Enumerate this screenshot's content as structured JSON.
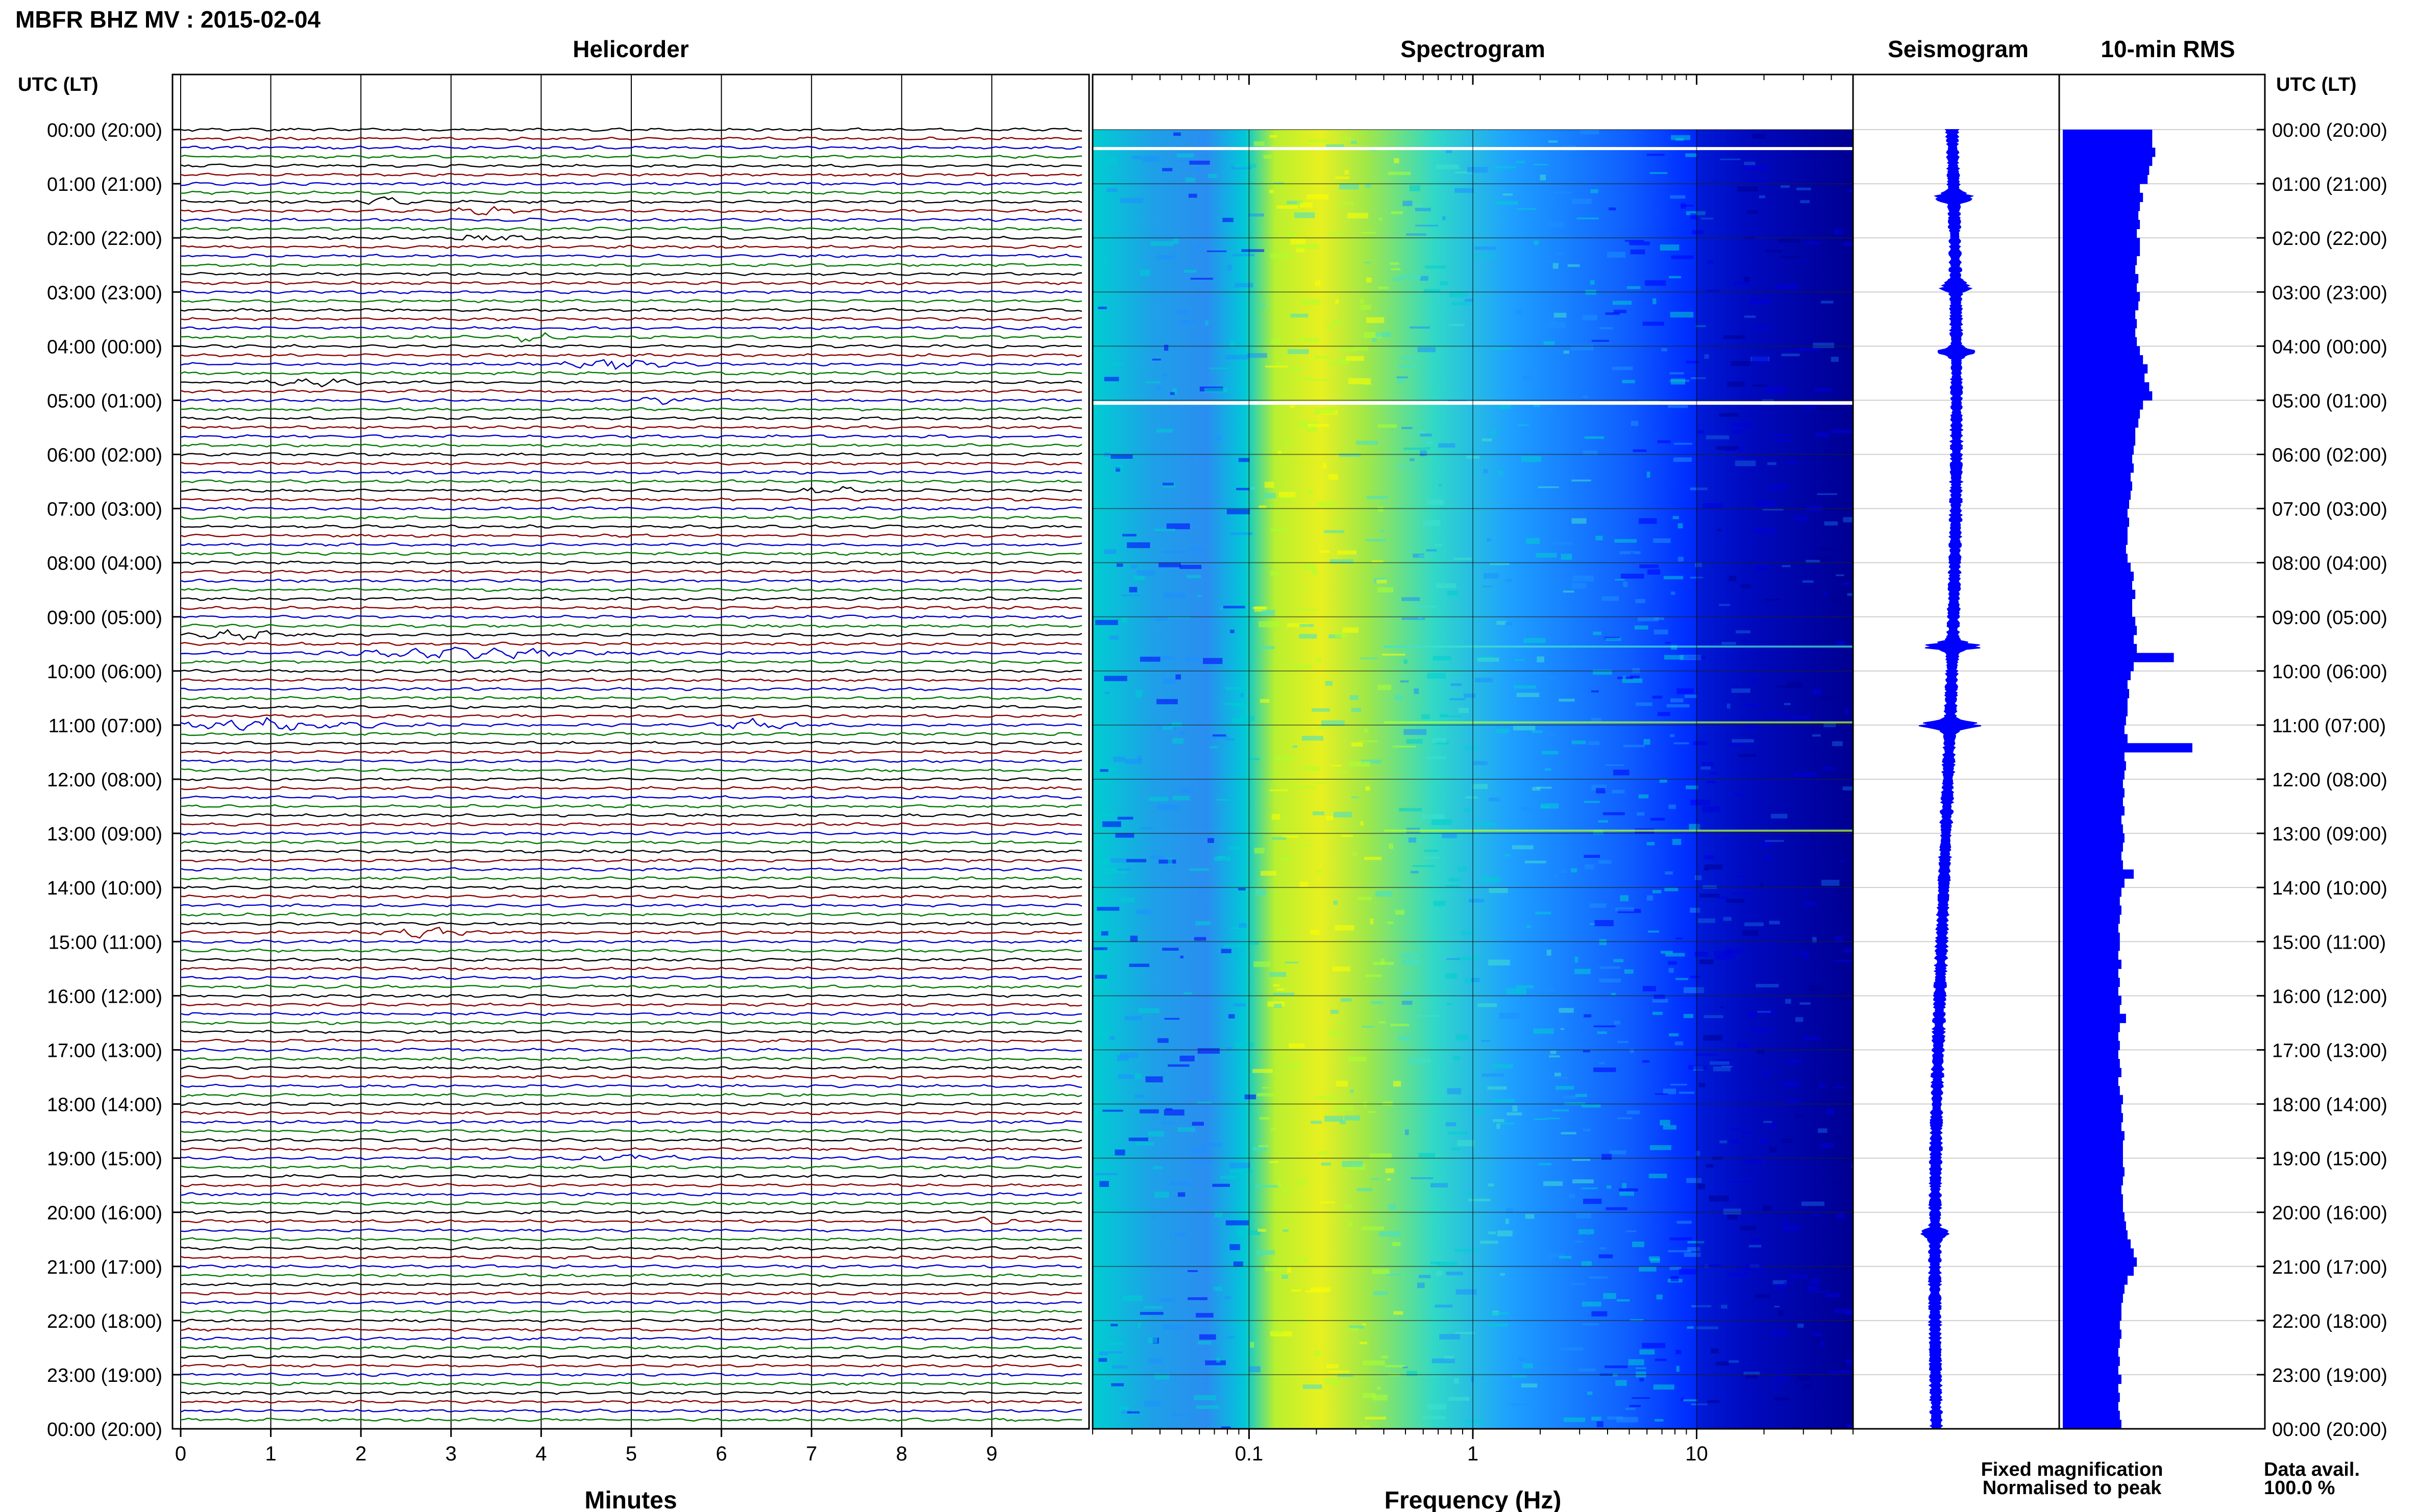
{
  "header": {
    "title": "MBFR BHZ MV : 2015-02-04",
    "utc_label_left": "UTC (LT)",
    "utc_label_right": "UTC (LT)"
  },
  "panels": {
    "helicorder": "Helicorder",
    "spectrogram": "Spectrogram",
    "seismogram": "Seismogram",
    "rms": "10-min RMS"
  },
  "time_labels": [
    "00:00 (20:00)",
    "01:00 (21:00)",
    "02:00 (22:00)",
    "03:00 (23:00)",
    "04:00 (00:00)",
    "05:00 (01:00)",
    "06:00 (02:00)",
    "07:00 (03:00)",
    "08:00 (04:00)",
    "09:00 (05:00)",
    "10:00 (06:00)",
    "11:00 (07:00)",
    "12:00 (08:00)",
    "13:00 (09:00)",
    "14:00 (10:00)",
    "15:00 (11:00)",
    "16:00 (12:00)",
    "17:00 (13:00)",
    "18:00 (14:00)",
    "19:00 (15:00)",
    "20:00 (16:00)",
    "21:00 (17:00)",
    "22:00 (18:00)",
    "23:00 (19:00)",
    "00:00 (20:00)"
  ],
  "legend": {
    "fixed": "Fixed magnification",
    "fixed_color": "#0000ff",
    "normalised": "Normalised to peak",
    "normalised_color": "#ff0000",
    "avail_label": "Data avail.",
    "avail_value": "100.0 %"
  },
  "chart_data": [
    {
      "type": "line",
      "panel": "helicorder",
      "title": "Helicorder",
      "xlabel": "Minutes",
      "x_ticks": [
        "0",
        "1",
        "2",
        "3",
        "4",
        "5",
        "6",
        "7",
        "8",
        "9"
      ],
      "xlim": [
        0,
        10
      ],
      "row_minutes": 10,
      "rows_per_hour": 6,
      "trace_colors": [
        "#000000",
        "#8b0000",
        "#0000cd",
        "#007a00"
      ],
      "grid": true
    },
    {
      "type": "heatmap",
      "panel": "spectrogram",
      "title": "Spectrogram",
      "xlabel": "Frequency (Hz)",
      "x_scale": "log",
      "xlim": [
        0.02,
        50
      ],
      "x_ticks": [
        "0.1",
        "1",
        "10"
      ],
      "colormap": [
        "#00008b",
        "#0000ff",
        "#1e90ff",
        "#00ced1",
        "#40e0d0",
        "#adff2f",
        "#ffff00"
      ],
      "grid": true
    },
    {
      "type": "line",
      "panel": "seismogram",
      "title": "Seismogram",
      "color": "#0000ff",
      "grid": true
    },
    {
      "type": "bar",
      "panel": "rms",
      "title": "10-min RMS",
      "color": "#0000ff",
      "values": [
        0.58,
        0.58,
        0.6,
        0.58,
        0.56,
        0.55,
        0.5,
        0.52,
        0.5,
        0.49,
        0.5,
        0.48,
        0.5,
        0.5,
        0.48,
        0.47,
        0.49,
        0.48,
        0.5,
        0.49,
        0.47,
        0.48,
        0.47,
        0.48,
        0.5,
        0.52,
        0.55,
        0.53,
        0.56,
        0.58,
        0.52,
        0.5,
        0.49,
        0.47,
        0.47,
        0.46,
        0.45,
        0.46,
        0.44,
        0.45,
        0.44,
        0.43,
        0.42,
        0.43,
        0.42,
        0.42,
        0.41,
        0.42,
        0.44,
        0.46,
        0.45,
        0.47,
        0.45,
        0.45,
        0.47,
        0.48,
        0.46,
        0.48,
        0.72,
        0.46,
        0.44,
        0.42,
        0.43,
        0.42,
        0.42,
        0.41,
        0.4,
        0.42,
        0.84,
        0.4,
        0.41,
        0.4,
        0.39,
        0.4,
        0.39,
        0.4,
        0.38,
        0.39,
        0.4,
        0.39,
        0.38,
        0.39,
        0.46,
        0.4,
        0.38,
        0.37,
        0.38,
        0.37,
        0.36,
        0.37,
        0.37,
        0.36,
        0.38,
        0.36,
        0.37,
        0.36,
        0.38,
        0.37,
        0.41,
        0.37,
        0.36,
        0.37,
        0.36,
        0.37,
        0.38,
        0.36,
        0.37,
        0.39,
        0.38,
        0.39,
        0.38,
        0.4,
        0.39,
        0.39,
        0.39,
        0.4,
        0.39,
        0.38,
        0.39,
        0.39,
        0.4,
        0.41,
        0.42,
        0.44,
        0.46,
        0.48,
        0.46,
        0.42,
        0.4,
        0.39,
        0.38,
        0.38,
        0.37,
        0.38,
        0.37,
        0.36,
        0.37,
        0.36,
        0.38,
        0.36,
        0.37,
        0.36,
        0.37,
        0.38
      ],
      "grid": true
    }
  ]
}
